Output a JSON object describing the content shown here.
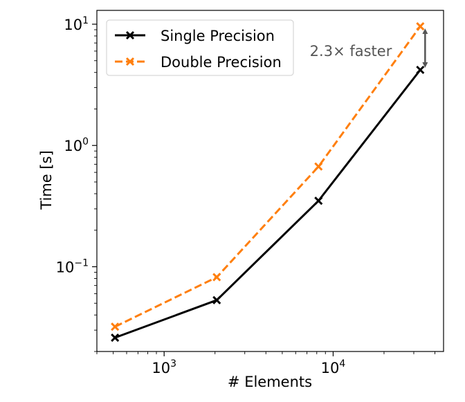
{
  "chart_data": {
    "type": "line",
    "xscale": "log",
    "yscale": "log",
    "xlabel": "# Elements",
    "ylabel": "Time [s]",
    "xlim": [
      400,
      45000
    ],
    "ylim": [
      0.02,
      13
    ],
    "x_ticks": [
      {
        "value": 1000,
        "base": "10",
        "exp": "3"
      },
      {
        "value": 10000,
        "base": "10",
        "exp": "4"
      }
    ],
    "y_ticks": [
      {
        "value": 0.1,
        "base": "10",
        "exp": "−1"
      },
      {
        "value": 1,
        "base": "10",
        "exp": "0"
      },
      {
        "value": 10,
        "base": "10",
        "exp": "1"
      }
    ],
    "grid": false,
    "legend_position": "top-left",
    "series": [
      {
        "name": "Single Precision",
        "color": "#000000",
        "dash": "solid",
        "marker": "x",
        "x": [
          512,
          2048,
          8192,
          32768
        ],
        "y": [
          0.026,
          0.053,
          0.35,
          4.2
        ]
      },
      {
        "name": "Double Precision",
        "color": "#ff7f0e",
        "dash": "dashed",
        "marker": "x",
        "x": [
          512,
          2048,
          8192,
          32768
        ],
        "y": [
          0.032,
          0.082,
          0.67,
          9.6
        ]
      }
    ],
    "annotation": {
      "text": "2.3× faster",
      "color": "#555555",
      "x": 32768,
      "y_from": 4.2,
      "y_to": 9.6,
      "arrow": "double"
    }
  }
}
